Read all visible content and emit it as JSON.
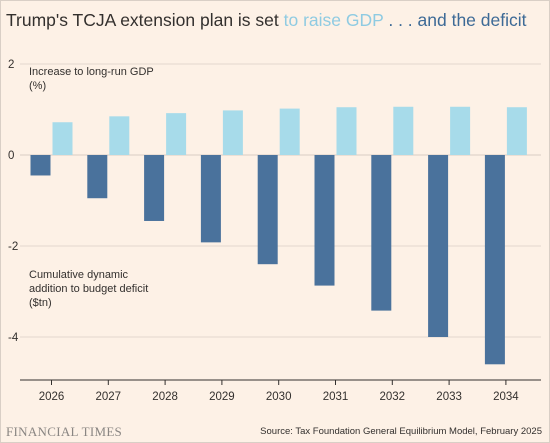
{
  "title": {
    "part1": "Trump's TCJA extension plan is set ",
    "part2": "to raise GDP",
    "part3": " . . . and the deficit"
  },
  "colors": {
    "background": "#fdf1e6",
    "gdp_bar": "#a7dbea",
    "deficit_bar": "#4a729c",
    "grid": "#d9cdc4",
    "text": "#33302e"
  },
  "annotations": {
    "gdp_label_1": "Increase to long-run GDP",
    "gdp_label_2": "(%)",
    "deficit_label_1": "Cumulative dynamic",
    "deficit_label_2": "addition to budget deficit",
    "deficit_label_3": "($tn)"
  },
  "footer": {
    "brand": "FINANCIAL TIMES",
    "source": "Source: Tax Foundation General Equilibrium Model, February 2025"
  },
  "chart_data": {
    "type": "bar",
    "categories": [
      "2026",
      "2027",
      "2028",
      "2029",
      "2030",
      "2031",
      "2032",
      "2033",
      "2034"
    ],
    "series": [
      {
        "values": [
          -0.45,
          -0.95,
          -1.45,
          -1.92,
          -2.4,
          -2.87,
          -3.42,
          -4.0,
          -4.6
        ]
      },
      {
        "values": [
          0.72,
          0.85,
          0.92,
          0.98,
          1.02,
          1.05,
          1.06,
          1.06,
          1.05
        ]
      }
    ],
    "y_ticks": [
      "2",
      "0",
      "-2",
      "-4"
    ],
    "ylim": [
      -5,
      2
    ],
    "grid": true,
    "legend": "none"
  }
}
